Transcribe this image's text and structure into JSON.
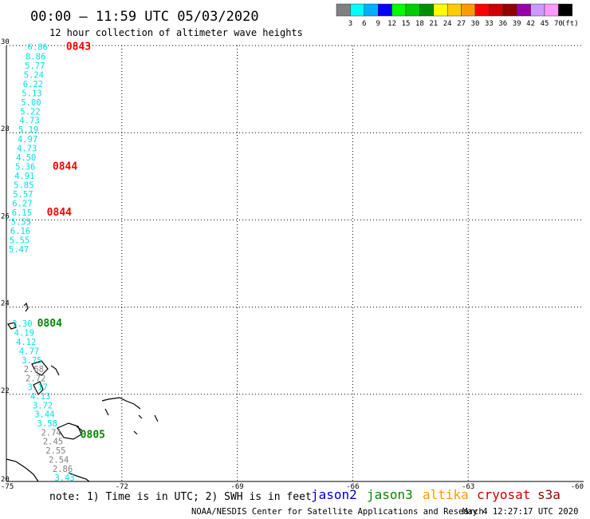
{
  "header": {
    "title": "00:00 – 11:59 UTC 05/03/2020",
    "subtitle": "12 hour collection of altimeter wave heights"
  },
  "legend": {
    "colors": [
      "#808080",
      "#00ffff",
      "#00b0ff",
      "#0000ff",
      "#00ff00",
      "#00cc00",
      "#009000",
      "#ffff00",
      "#ffcc00",
      "#ff9900",
      "#ff0000",
      "#cc0000",
      "#900000",
      "#9900aa",
      "#cc99ff",
      "#ff99ff",
      "#000000"
    ],
    "labels": [
      "3",
      "6",
      "9",
      "12",
      "15",
      "18",
      "21",
      "24",
      "27",
      "30",
      "33",
      "36",
      "39",
      "42",
      "45",
      "70"
    ],
    "unit": "(ft)"
  },
  "axes": {
    "lon_ticks": [
      "-75",
      "-72",
      "-69",
      "-66",
      "-63",
      "-60"
    ],
    "lat_ticks": [
      "30",
      "28",
      "26",
      "24",
      "22",
      "20"
    ],
    "lon_range": [
      -75,
      -60
    ],
    "lat_range": [
      20,
      30
    ]
  },
  "tracks": [
    {
      "pass_label": "0843",
      "pass_color": "#ff0000",
      "label_lon": -73.45,
      "label_lat": 29.9,
      "points": [
        {
          "lon": -74.45,
          "lat": 29.9,
          "v": "6.86",
          "c": "#00e0e0"
        },
        {
          "lon": -74.5,
          "lat": 29.68,
          "v": "8.86",
          "c": "#00e0e0"
        },
        {
          "lon": -74.52,
          "lat": 29.47,
          "v": "5.77",
          "c": "#00e0e0"
        },
        {
          "lon": -74.55,
          "lat": 29.26,
          "v": "5.24",
          "c": "#00e0e0"
        },
        {
          "lon": -74.57,
          "lat": 29.05,
          "v": "6.22",
          "c": "#00e0e0"
        },
        {
          "lon": -74.6,
          "lat": 28.84,
          "v": "5.13",
          "c": "#00e0e0"
        },
        {
          "lon": -74.62,
          "lat": 28.63,
          "v": "5.00",
          "c": "#00e0e0"
        },
        {
          "lon": -74.64,
          "lat": 28.42,
          "v": "5.22",
          "c": "#00e0e0"
        },
        {
          "lon": -74.66,
          "lat": 28.21,
          "v": "4.73",
          "c": "#00e0e0"
        },
        {
          "lon": -74.69,
          "lat": 28.0,
          "v": "5.19",
          "c": "#00e0e0"
        },
        {
          "lon": -74.71,
          "lat": 27.78,
          "v": "4.97",
          "c": "#00e0e0"
        },
        {
          "lon": -74.73,
          "lat": 27.57,
          "v": "4.73",
          "c": "#00e0e0"
        },
        {
          "lon": -74.75,
          "lat": 27.36,
          "v": "4.50",
          "c": "#00e0e0"
        },
        {
          "lon": -74.77,
          "lat": 27.15,
          "v": "5.36",
          "c": "#00e0e0"
        },
        {
          "lon": -74.79,
          "lat": 26.94,
          "v": "4.91",
          "c": "#00e0e0"
        },
        {
          "lon": -74.81,
          "lat": 26.73,
          "v": "5.85",
          "c": "#00e0e0"
        },
        {
          "lon": -74.83,
          "lat": 26.52,
          "v": "5.57",
          "c": "#00e0e0"
        },
        {
          "lon": -74.85,
          "lat": 26.31,
          "v": "6.27",
          "c": "#00e0e0"
        }
      ]
    },
    {
      "pass_label": "0844",
      "pass_color": "#ff0000",
      "label_lon": -73.8,
      "label_lat": 27.15,
      "points": []
    },
    {
      "pass_label": "0844",
      "pass_color": "#ff0000",
      "label_lon": -73.95,
      "label_lat": 26.1,
      "points": [
        {
          "lon": -74.86,
          "lat": 26.1,
          "v": "6.15",
          "c": "#00e0e0"
        },
        {
          "lon": -74.88,
          "lat": 25.89,
          "v": "5.55",
          "c": "#00e0e0"
        },
        {
          "lon": -74.9,
          "lat": 25.68,
          "v": "6.16",
          "c": "#00e0e0"
        },
        {
          "lon": -74.92,
          "lat": 25.47,
          "v": "5.55",
          "c": "#00e0e0"
        },
        {
          "lon": -74.94,
          "lat": 25.26,
          "v": "5.47",
          "c": "#00e0e0"
        }
      ]
    },
    {
      "pass_label": "0804",
      "pass_color": "#008800",
      "label_lon": -74.2,
      "label_lat": 23.55,
      "points": [
        {
          "lon": -74.85,
          "lat": 23.55,
          "v": "3.30",
          "c": "#00e0e0"
        },
        {
          "lon": -74.8,
          "lat": 23.34,
          "v": "4.19",
          "c": "#00e0e0"
        },
        {
          "lon": -74.75,
          "lat": 23.13,
          "v": "4.12",
          "c": "#00e0e0"
        },
        {
          "lon": -74.67,
          "lat": 22.92,
          "v": "4.77",
          "c": "#00e0e0"
        },
        {
          "lon": -74.6,
          "lat": 22.71,
          "v": "3.75",
          "c": "#00e0e0"
        },
        {
          "lon": -74.55,
          "lat": 22.51,
          "v": "2.68",
          "c": "#808080"
        },
        {
          "lon": -74.5,
          "lat": 22.3,
          "v": "2.72",
          "c": "#808080"
        },
        {
          "lon": -74.45,
          "lat": 22.1,
          "v": "3.17",
          "c": "#00e0e0"
        },
        {
          "lon": -74.38,
          "lat": 21.89,
          "v": "4.13",
          "c": "#00e0e0"
        },
        {
          "lon": -74.32,
          "lat": 21.68,
          "v": "3.72",
          "c": "#00e0e0"
        },
        {
          "lon": -74.27,
          "lat": 21.47,
          "v": "3.44",
          "c": "#00e0e0"
        },
        {
          "lon": -74.2,
          "lat": 21.26,
          "v": "3.58",
          "c": "#00e0e0"
        }
      ]
    },
    {
      "pass_label": "0805",
      "pass_color": "#008800",
      "label_lon": -73.08,
      "label_lat": 21.0,
      "points": [
        {
          "lon": -74.1,
          "lat": 21.05,
          "v": "2.74",
          "c": "#808080"
        },
        {
          "lon": -74.05,
          "lat": 20.85,
          "v": "2.45",
          "c": "#808080"
        },
        {
          "lon": -73.98,
          "lat": 20.64,
          "v": "2.55",
          "c": "#808080"
        },
        {
          "lon": -73.9,
          "lat": 20.43,
          "v": "2.54",
          "c": "#808080"
        },
        {
          "lon": -73.8,
          "lat": 20.22,
          "v": "2.86",
          "c": "#808080"
        },
        {
          "lon": -73.75,
          "lat": 20.02,
          "v": "3.43",
          "c": "#00e0e0"
        }
      ]
    }
  ],
  "footer": {
    "note": "note: 1) Time is in UTC; 2) SWH is in feet",
    "satellites": [
      {
        "name": "jason2",
        "color": "#0000cc"
      },
      {
        "name": "jason3",
        "color": "#008800"
      },
      {
        "name": "altika",
        "color": "#ff9900"
      },
      {
        "name": "cryosat",
        "color": "#cc0000"
      },
      {
        "name": "s3a",
        "color": "#990000"
      }
    ],
    "credit": "NOAA/NESDIS Center for Satellite Applications and Research",
    "timestamp": "May 4 12:27:17 UTC 2020"
  }
}
